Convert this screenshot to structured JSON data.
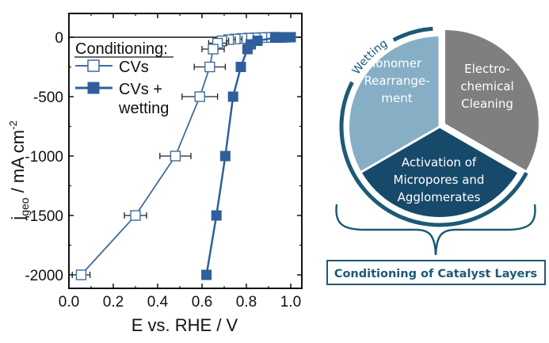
{
  "chart_data": {
    "type": "line",
    "title": "",
    "xlabel": "E vs. RHE / V",
    "ylabel_main": "j",
    "ylabel_sub": "geo",
    "ylabel_rest": " / mA cm",
    "ylabel_sup": "-2",
    "xlim": [
      0.0,
      1.05
    ],
    "ylim": [
      -2100,
      200
    ],
    "xticks": [
      0.0,
      0.2,
      0.4,
      0.6,
      0.8,
      1.0
    ],
    "xtick_labels": [
      "0.0",
      "0.2",
      "0.4",
      "0.6",
      "0.8",
      "1.0"
    ],
    "yticks": [
      0,
      -500,
      -1000,
      -1500,
      -2000
    ],
    "ytick_labels": [
      "0",
      "-500",
      "-1000",
      "-1500",
      "-2000"
    ],
    "grid": false,
    "legend": {
      "title": "Conditioning:",
      "placement": "top-left",
      "entries": [
        {
          "label_lines": [
            "CVs"
          ]
        },
        {
          "label_lines": [
            "CVs +",
            "wetting"
          ]
        }
      ]
    },
    "series": [
      {
        "name": "CVs",
        "marker": "open-square",
        "color": "#3e6c9e",
        "points": [
          {
            "x": 0.93,
            "y": 0,
            "xerr": 0.02
          },
          {
            "x": 0.9,
            "y": -2,
            "xerr": 0.02
          },
          {
            "x": 0.87,
            "y": -3,
            "xerr": 0.02
          },
          {
            "x": 0.84,
            "y": -5,
            "xerr": 0.02
          },
          {
            "x": 0.81,
            "y": -7,
            "xerr": 0.02
          },
          {
            "x": 0.78,
            "y": -10,
            "xerr": 0.02
          },
          {
            "x": 0.75,
            "y": -15,
            "xerr": 0.03
          },
          {
            "x": 0.72,
            "y": -20,
            "xerr": 0.03
          },
          {
            "x": 0.69,
            "y": -30,
            "xerr": 0.03
          },
          {
            "x": 0.67,
            "y": -50,
            "xerr": 0.04
          },
          {
            "x": 0.65,
            "y": -100,
            "xerr": 0.05
          },
          {
            "x": 0.635,
            "y": -250,
            "xerr": 0.07
          },
          {
            "x": 0.59,
            "y": -500,
            "xerr": 0.08
          },
          {
            "x": 0.48,
            "y": -1000,
            "xerr": 0.07
          },
          {
            "x": 0.3,
            "y": -1500,
            "xerr": 0.05
          },
          {
            "x": 0.055,
            "y": -2000,
            "xerr": 0.04
          }
        ]
      },
      {
        "name": "CVs + wetting",
        "marker": "filled-square",
        "color": "#2f5f9a",
        "points": [
          {
            "x": 1.0,
            "y": 0,
            "xerr": 0.005
          },
          {
            "x": 0.99,
            "y": 0,
            "xerr": 0.005
          },
          {
            "x": 0.98,
            "y": -1,
            "xerr": 0.005
          },
          {
            "x": 0.97,
            "y": -1,
            "xerr": 0.005
          },
          {
            "x": 0.96,
            "y": -2,
            "xerr": 0.005
          },
          {
            "x": 0.95,
            "y": -2,
            "xerr": 0.005
          },
          {
            "x": 0.94,
            "y": -3,
            "xerr": 0.005
          },
          {
            "x": 0.93,
            "y": -4,
            "xerr": 0.005
          },
          {
            "x": 0.85,
            "y": -30,
            "xerr": 0.008
          },
          {
            "x": 0.82,
            "y": -60,
            "xerr": 0.008
          },
          {
            "x": 0.805,
            "y": -100,
            "xerr": 0.01
          },
          {
            "x": 0.775,
            "y": -250,
            "xerr": 0.01
          },
          {
            "x": 0.74,
            "y": -500,
            "xerr": 0.012
          },
          {
            "x": 0.705,
            "y": -1000,
            "xerr": 0.012
          },
          {
            "x": 0.665,
            "y": -1500,
            "xerr": 0.012
          },
          {
            "x": 0.62,
            "y": -2000,
            "xerr": 0.015
          }
        ]
      }
    ]
  },
  "diagram": {
    "sectors": [
      {
        "name": "ionomer-rearrangement",
        "lines": [
          "Ionomer",
          "Rearrange-",
          "ment"
        ],
        "color": "#86afc6"
      },
      {
        "name": "electrochemical-cleaning",
        "lines": [
          "Electro-",
          "chemical",
          "Cleaning"
        ],
        "color": "#7f7f7f"
      },
      {
        "name": "activation-of-micropores",
        "lines": [
          "Activation of",
          "Micropores and",
          "Agglomerates"
        ],
        "color": "#17496a"
      }
    ],
    "arc_label": "Wetting",
    "accent_color": "#1c5a75",
    "summary_box_label": "Conditioning of Catalyst Layers"
  }
}
